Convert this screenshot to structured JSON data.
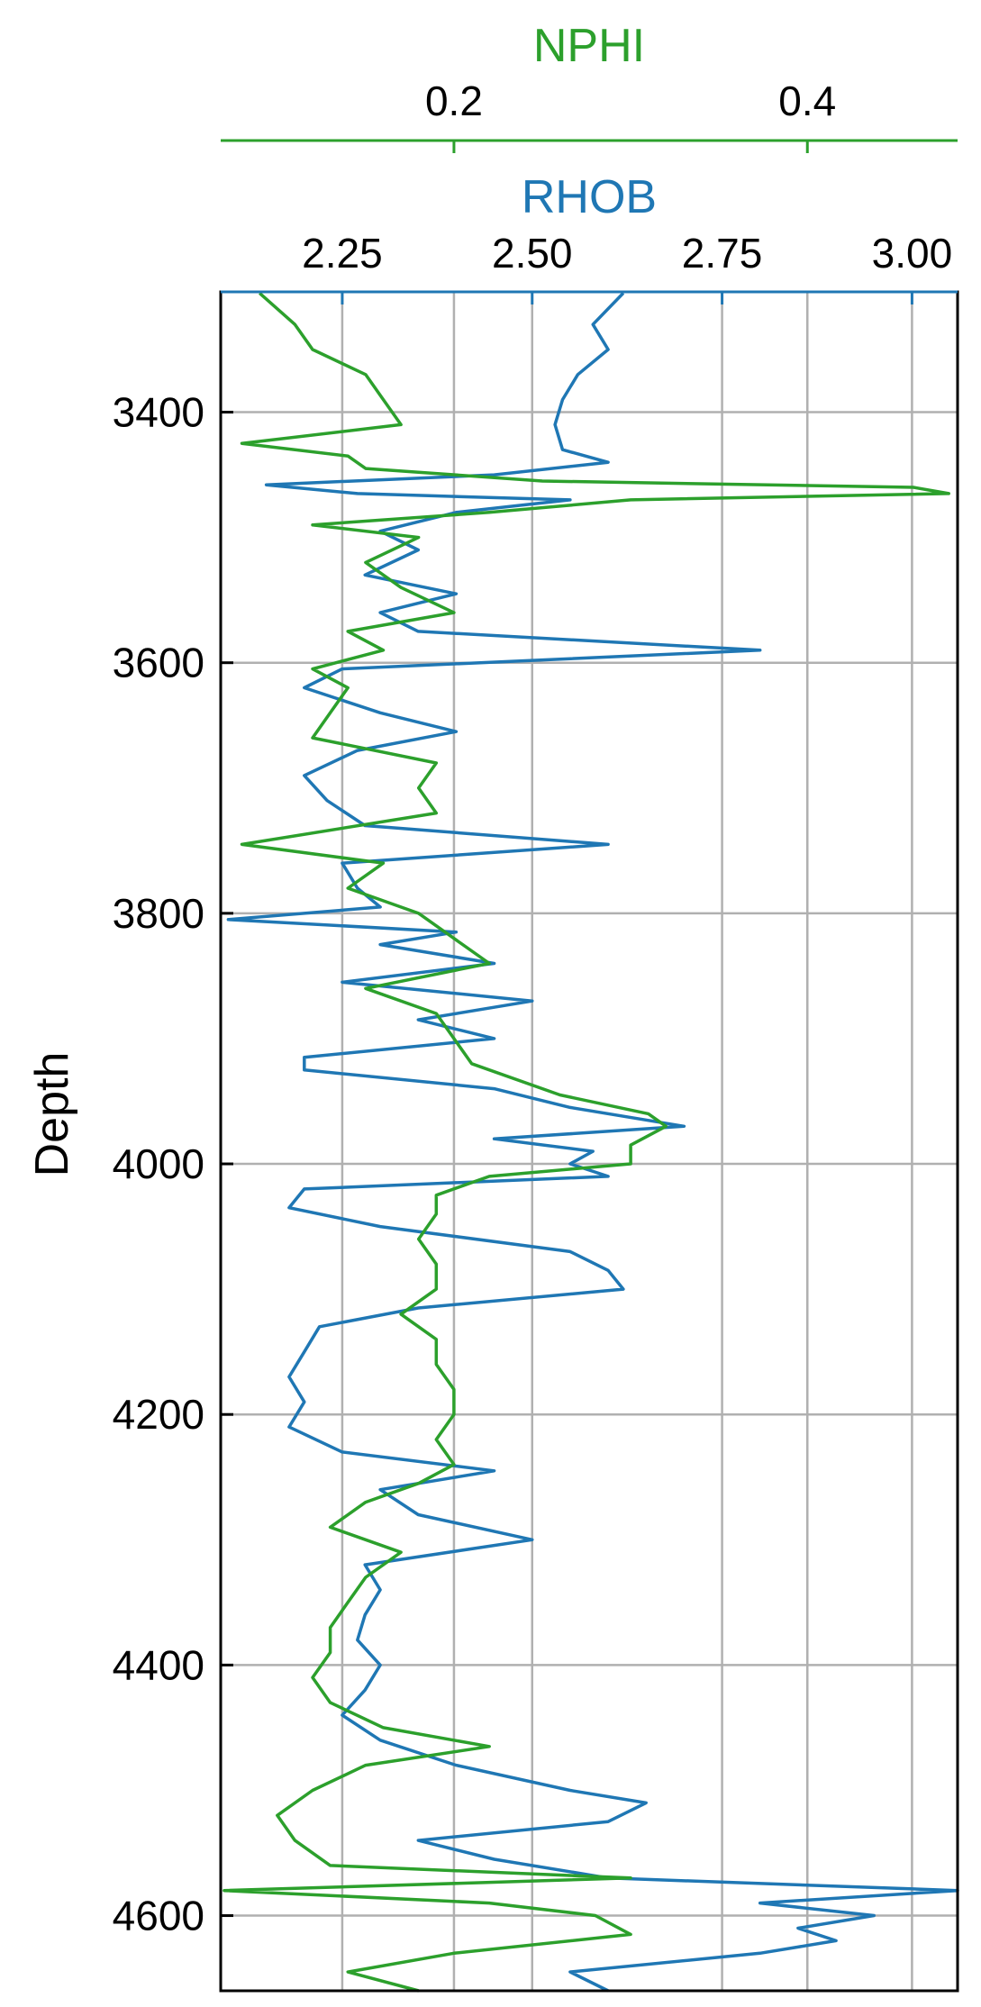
{
  "chart_data": {
    "type": "line",
    "title": "",
    "ylabel": "Depth",
    "ylim": [
      4660,
      3304
    ],
    "y_inverted": true,
    "grid": true,
    "legend": "none",
    "axes": {
      "rhob": {
        "label": "RHOB",
        "color": "#1f77b4",
        "range": [
          2.09,
          3.06
        ],
        "ticks": [
          2.25,
          2.5,
          2.75,
          3.0
        ],
        "tick_labels": [
          "2.25",
          "2.50",
          "2.75",
          "3.00"
        ]
      },
      "nphi": {
        "label": "NPHI",
        "color": "#2ca02c",
        "range": [
          0.068,
          0.485
        ],
        "ticks": [
          0.2,
          0.4
        ],
        "tick_labels": [
          "0.2",
          "0.4"
        ]
      },
      "depth": {
        "ticks": [
          3400,
          3600,
          3800,
          4000,
          4200,
          4400,
          4600
        ],
        "tick_labels": [
          "3400",
          "3600",
          "3800",
          "4000",
          "4200",
          "4400",
          "4600"
        ]
      }
    },
    "series": [
      {
        "name": "RHOB",
        "color": "#1f77b4",
        "depth": [
          3305,
          3330,
          3350,
          3370,
          3390,
          3410,
          3430,
          3440,
          3450,
          3458,
          3465,
          3470,
          3480,
          3495,
          3510,
          3530,
          3545,
          3560,
          3575,
          3590,
          3605,
          3620,
          3640,
          3655,
          3670,
          3690,
          3710,
          3730,
          3745,
          3760,
          3780,
          3795,
          3805,
          3815,
          3825,
          3840,
          3855,
          3870,
          3885,
          3900,
          3915,
          3925,
          3940,
          3955,
          3970,
          3980,
          3990,
          4000,
          4010,
          4020,
          4035,
          4050,
          4070,
          4085,
          4100,
          4115,
          4130,
          4150,
          4170,
          4190,
          4210,
          4230,
          4245,
          4260,
          4280,
          4300,
          4320,
          4340,
          4360,
          4380,
          4400,
          4420,
          4440,
          4460,
          4480,
          4500,
          4510,
          4525,
          4540,
          4555,
          4570,
          4580,
          4590,
          4600,
          4610,
          4620,
          4630,
          4645,
          4660
        ],
        "values": [
          2.62,
          2.58,
          2.6,
          2.56,
          2.54,
          2.53,
          2.54,
          2.6,
          2.45,
          2.15,
          2.27,
          2.55,
          2.4,
          2.3,
          2.35,
          2.28,
          2.4,
          2.3,
          2.35,
          2.8,
          2.25,
          2.2,
          2.3,
          2.4,
          2.27,
          2.2,
          2.23,
          2.28,
          2.6,
          2.25,
          2.27,
          2.3,
          2.1,
          2.4,
          2.3,
          2.45,
          2.25,
          2.5,
          2.35,
          2.45,
          2.2,
          2.2,
          2.45,
          2.55,
          2.7,
          2.45,
          2.58,
          2.55,
          2.6,
          2.2,
          2.18,
          2.3,
          2.55,
          2.6,
          2.62,
          2.35,
          2.22,
          2.2,
          2.18,
          2.2,
          2.18,
          2.25,
          2.45,
          2.3,
          2.35,
          2.5,
          2.28,
          2.3,
          2.28,
          2.27,
          2.3,
          2.28,
          2.25,
          2.3,
          2.4,
          2.55,
          2.65,
          2.6,
          2.35,
          2.45,
          2.6,
          3.08,
          2.8,
          2.95,
          2.85,
          2.9,
          2.8,
          2.55,
          2.6
        ]
      },
      {
        "name": "NPHI",
        "color": "#2ca02c",
        "depth": [
          3305,
          3330,
          3350,
          3370,
          3390,
          3410,
          3425,
          3435,
          3445,
          3455,
          3460,
          3465,
          3470,
          3480,
          3490,
          3500,
          3520,
          3540,
          3560,
          3575,
          3590,
          3605,
          3620,
          3640,
          3660,
          3680,
          3700,
          3720,
          3745,
          3760,
          3780,
          3800,
          3820,
          3840,
          3860,
          3880,
          3900,
          3920,
          3945,
          3960,
          3970,
          3985,
          4000,
          4010,
          4025,
          4040,
          4060,
          4080,
          4100,
          4120,
          4140,
          4160,
          4180,
          4200,
          4220,
          4240,
          4255,
          4270,
          4290,
          4310,
          4330,
          4350,
          4370,
          4390,
          4410,
          4430,
          4450,
          4465,
          4480,
          4500,
          4520,
          4540,
          4560,
          4570,
          4580,
          4590,
          4600,
          4615,
          4630,
          4645,
          4660
        ],
        "values": [
          0.09,
          0.11,
          0.12,
          0.15,
          0.16,
          0.17,
          0.08,
          0.14,
          0.15,
          0.25,
          0.46,
          0.48,
          0.3,
          0.22,
          0.12,
          0.18,
          0.15,
          0.17,
          0.2,
          0.14,
          0.16,
          0.12,
          0.14,
          0.13,
          0.12,
          0.19,
          0.18,
          0.19,
          0.08,
          0.16,
          0.14,
          0.18,
          0.2,
          0.22,
          0.15,
          0.19,
          0.2,
          0.21,
          0.26,
          0.31,
          0.32,
          0.3,
          0.3,
          0.22,
          0.19,
          0.19,
          0.18,
          0.19,
          0.19,
          0.17,
          0.19,
          0.19,
          0.2,
          0.2,
          0.19,
          0.2,
          0.18,
          0.15,
          0.13,
          0.17,
          0.15,
          0.14,
          0.13,
          0.13,
          0.12,
          0.13,
          0.16,
          0.22,
          0.15,
          0.12,
          0.1,
          0.11,
          0.13,
          0.3,
          0.07,
          0.22,
          0.28,
          0.3,
          0.2,
          0.14,
          0.18
        ]
      }
    ]
  }
}
